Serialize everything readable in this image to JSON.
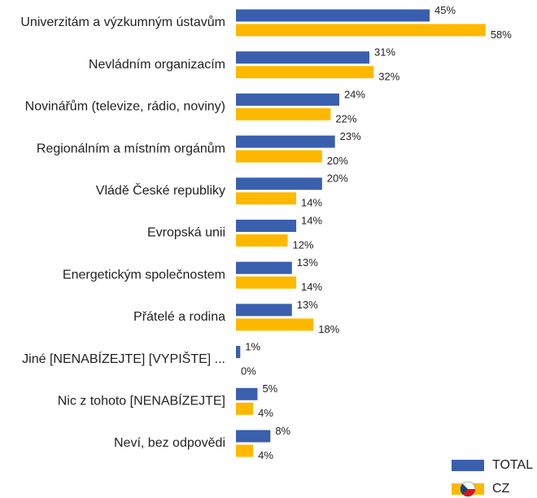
{
  "chart_data": {
    "type": "hbar",
    "categories": [
      "Univerzitám a výzkumným ústavům",
      "Nevládním organizacím",
      "Novinářům (televize, rádio, noviny)",
      "Regionálním a místním orgánům",
      "Vládě České republiky",
      "Evropská unii",
      "Energetickým společnostem",
      "Přátelé a rodina",
      "Jiné [NENABÍZEJTE] [VYPIŠTE] ...",
      "Nic z tohoto [NENABÍZEJTE]",
      "Neví, bez odpovědi"
    ],
    "series": [
      {
        "name": "TOTAL",
        "color": "#3a5fad",
        "values": [
          45,
          31,
          24,
          23,
          20,
          14,
          13,
          13,
          1,
          5,
          8
        ],
        "value_labels": [
          "45%",
          "31%",
          "24%",
          "23%",
          "20%",
          "14%",
          "13%",
          "13%",
          "1%",
          "5%",
          "8%"
        ]
      },
      {
        "name": "CZ",
        "color": "#ffb800",
        "values": [
          58,
          32,
          22,
          20,
          14,
          12,
          14,
          18,
          0,
          4,
          4
        ],
        "value_labels": [
          "58%",
          "32%",
          "22%",
          "20%",
          "14%",
          "12%",
          "14%",
          "18%",
          "0%",
          "4%",
          "4%"
        ]
      }
    ],
    "legend": "bottom-right"
  }
}
